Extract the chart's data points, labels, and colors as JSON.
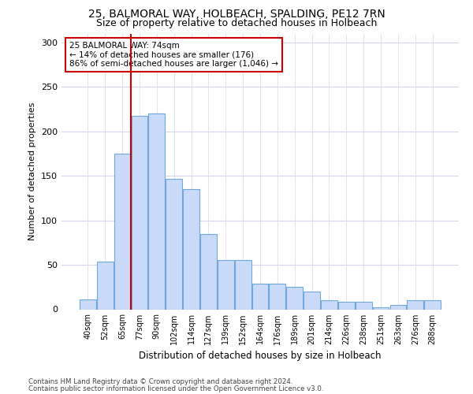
{
  "title_line1": "25, BALMORAL WAY, HOLBEACH, SPALDING, PE12 7RN",
  "title_line2": "Size of property relative to detached houses in Holbeach",
  "xlabel": "Distribution of detached houses by size in Holbeach",
  "ylabel": "Number of detached properties",
  "bar_labels": [
    "40sqm",
    "52sqm",
    "65sqm",
    "77sqm",
    "90sqm",
    "102sqm",
    "114sqm",
    "127sqm",
    "139sqm",
    "152sqm",
    "164sqm",
    "176sqm",
    "189sqm",
    "201sqm",
    "214sqm",
    "226sqm",
    "238sqm",
    "251sqm",
    "263sqm",
    "276sqm",
    "288sqm"
  ],
  "bar_values": [
    11,
    54,
    175,
    217,
    220,
    147,
    135,
    85,
    55,
    55,
    29,
    29,
    25,
    20,
    10,
    8,
    8,
    2,
    5,
    10,
    10
  ],
  "bar_color": "#c9daf8",
  "bar_edge_color": "#6fa8dc",
  "vline_color": "#cc0000",
  "annotation_title": "25 BALMORAL WAY: 74sqm",
  "annotation_line1": "← 14% of detached houses are smaller (176)",
  "annotation_line2": "86% of semi-detached houses are larger (1,046) →",
  "annotation_box_color": "#cc0000",
  "ylim": [
    0,
    310
  ],
  "yticks": [
    0,
    50,
    100,
    150,
    200,
    250,
    300
  ],
  "footer_line1": "Contains HM Land Registry data © Crown copyright and database right 2024.",
  "footer_line2": "Contains public sector information licensed under the Open Government Licence v3.0.",
  "bg_color": "#ffffff",
  "grid_color": "#d0d8e8"
}
